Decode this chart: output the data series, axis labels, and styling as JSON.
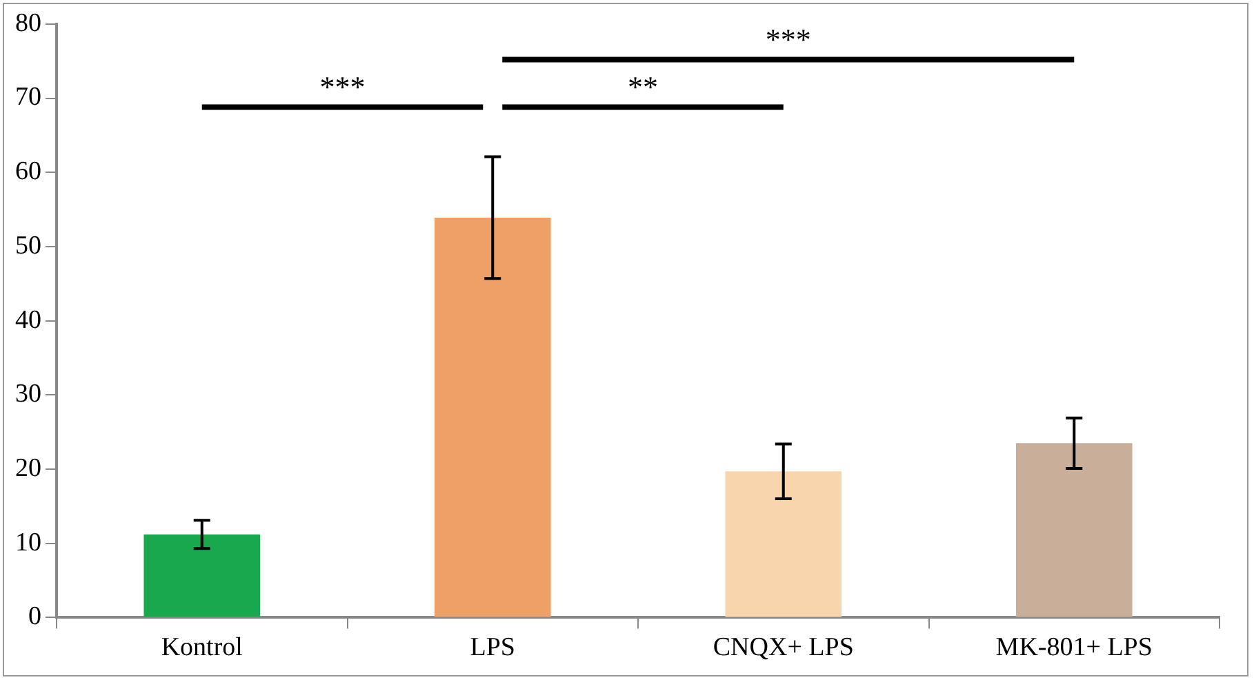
{
  "chart_data": {
    "type": "bar",
    "categories": [
      "Kontrol",
      "LPS",
      "CNQX+ LPS",
      "MK-801+ LPS"
    ],
    "values": [
      11.2,
      53.9,
      19.7,
      23.5
    ],
    "errors": [
      1.9,
      8.2,
      3.7,
      3.4
    ],
    "colors": [
      "#1aa84f",
      "#eea066",
      "#f9d5ae",
      "#c9ae9a"
    ],
    "ylim": [
      0,
      80
    ],
    "yticks": [
      0,
      10,
      20,
      30,
      40,
      50,
      60,
      70,
      80
    ],
    "grid": false,
    "legend": false,
    "annotations": [
      "***",
      "**",
      "***"
    ]
  }
}
